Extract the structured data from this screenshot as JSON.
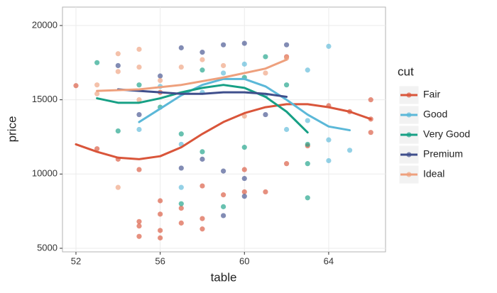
{
  "chart_data": {
    "type": "scatter",
    "x_label": "table",
    "y_label": "price",
    "legend_title": "cut",
    "xlim": [
      51.36,
      66.7
    ],
    "ylim": [
      4760,
      21240
    ],
    "xticks": [
      52,
      56,
      60,
      64
    ],
    "yticks": [
      5000,
      10000,
      15000,
      20000
    ],
    "grid": true,
    "series": [
      {
        "name": "Fair",
        "color": "#d9553a",
        "x": [
          52,
          53,
          54,
          55,
          55,
          55,
          55,
          56,
          56,
          56,
          56,
          56,
          57,
          57,
          58,
          58,
          58,
          59,
          60,
          60,
          61,
          62,
          62,
          63,
          64,
          65,
          66,
          66,
          66
        ],
        "values": [
          15950,
          11700,
          11000,
          10300,
          6800,
          6500,
          5800,
          8200,
          7300,
          6200,
          5700,
          15500,
          7700,
          6700,
          9200,
          6300,
          7000,
          8600,
          8800,
          10300,
          8800,
          10700,
          17900,
          11900,
          14600,
          14200,
          15000,
          12800,
          13700
        ],
        "smooth_x": [
          52,
          53,
          54,
          55,
          56,
          57,
          58,
          59,
          60,
          61,
          62,
          63,
          64,
          65,
          66
        ],
        "smooth_values": [
          12000,
          11500,
          11100,
          11000,
          11200,
          11800,
          12700,
          13500,
          14100,
          14500,
          14700,
          14700,
          14500,
          14200,
          13700
        ]
      },
      {
        "name": "Good",
        "color": "#5bb8d8",
        "x": [
          55,
          56,
          57,
          57,
          58,
          59,
          60,
          61,
          62,
          63,
          64,
          64,
          64,
          65,
          63
        ],
        "values": [
          13000,
          15900,
          9100,
          12000,
          15500,
          16800,
          17400,
          15300,
          13000,
          13600,
          18600,
          10900,
          12300,
          11600,
          17000
        ],
        "smooth_x": [
          55,
          56,
          57,
          58,
          59,
          60,
          61,
          62,
          63,
          64,
          65
        ],
        "smooth_values": [
          13500,
          14400,
          15300,
          16000,
          16400,
          16400,
          15900,
          15000,
          14000,
          13200,
          12950
        ]
      },
      {
        "name": "Very Good",
        "color": "#17a085",
        "x": [
          53,
          54,
          55,
          56,
          57,
          57,
          58,
          58,
          59,
          60,
          60,
          61,
          62,
          63,
          63,
          63
        ],
        "values": [
          17500,
          12900,
          16000,
          14500,
          8000,
          12700,
          17000,
          11500,
          7800,
          16500,
          11800,
          17900,
          16000,
          8400,
          12000,
          10700
        ],
        "smooth_x": [
          53,
          54,
          55,
          56,
          57,
          58,
          59,
          60,
          61,
          62,
          63
        ],
        "smooth_values": [
          15100,
          14800,
          14800,
          15100,
          15500,
          15800,
          16000,
          15800,
          15200,
          14200,
          12800
        ]
      },
      {
        "name": "Premium",
        "color": "#3f4f8c",
        "x": [
          54,
          55,
          56,
          57,
          57,
          58,
          58,
          59,
          59,
          59,
          60,
          60,
          60,
          61,
          62
        ],
        "values": [
          17300,
          14000,
          16600,
          18500,
          10400,
          18200,
          11000,
          18700,
          7200,
          10200,
          18800,
          8500,
          9700,
          14000,
          18700
        ],
        "smooth_x": [
          54,
          55,
          56,
          57,
          58,
          59,
          60,
          61,
          62
        ],
        "smooth_values": [
          15700,
          15600,
          15500,
          15400,
          15400,
          15500,
          15500,
          15400,
          15200
        ]
      },
      {
        "name": "Ideal",
        "color": "#eea07d",
        "x": [
          53,
          53,
          54,
          54,
          54,
          55,
          55,
          55,
          56,
          57,
          58,
          59,
          60,
          61,
          62
        ],
        "values": [
          16000,
          15400,
          18100,
          9100,
          16900,
          18400,
          17200,
          15000,
          16300,
          17200,
          17700,
          17300,
          13900,
          16800,
          17800
        ],
        "smooth_x": [
          53,
          55,
          57,
          59,
          61,
          62
        ],
        "smooth_values": [
          15600,
          15700,
          16000,
          16500,
          17100,
          17700
        ]
      }
    ]
  }
}
